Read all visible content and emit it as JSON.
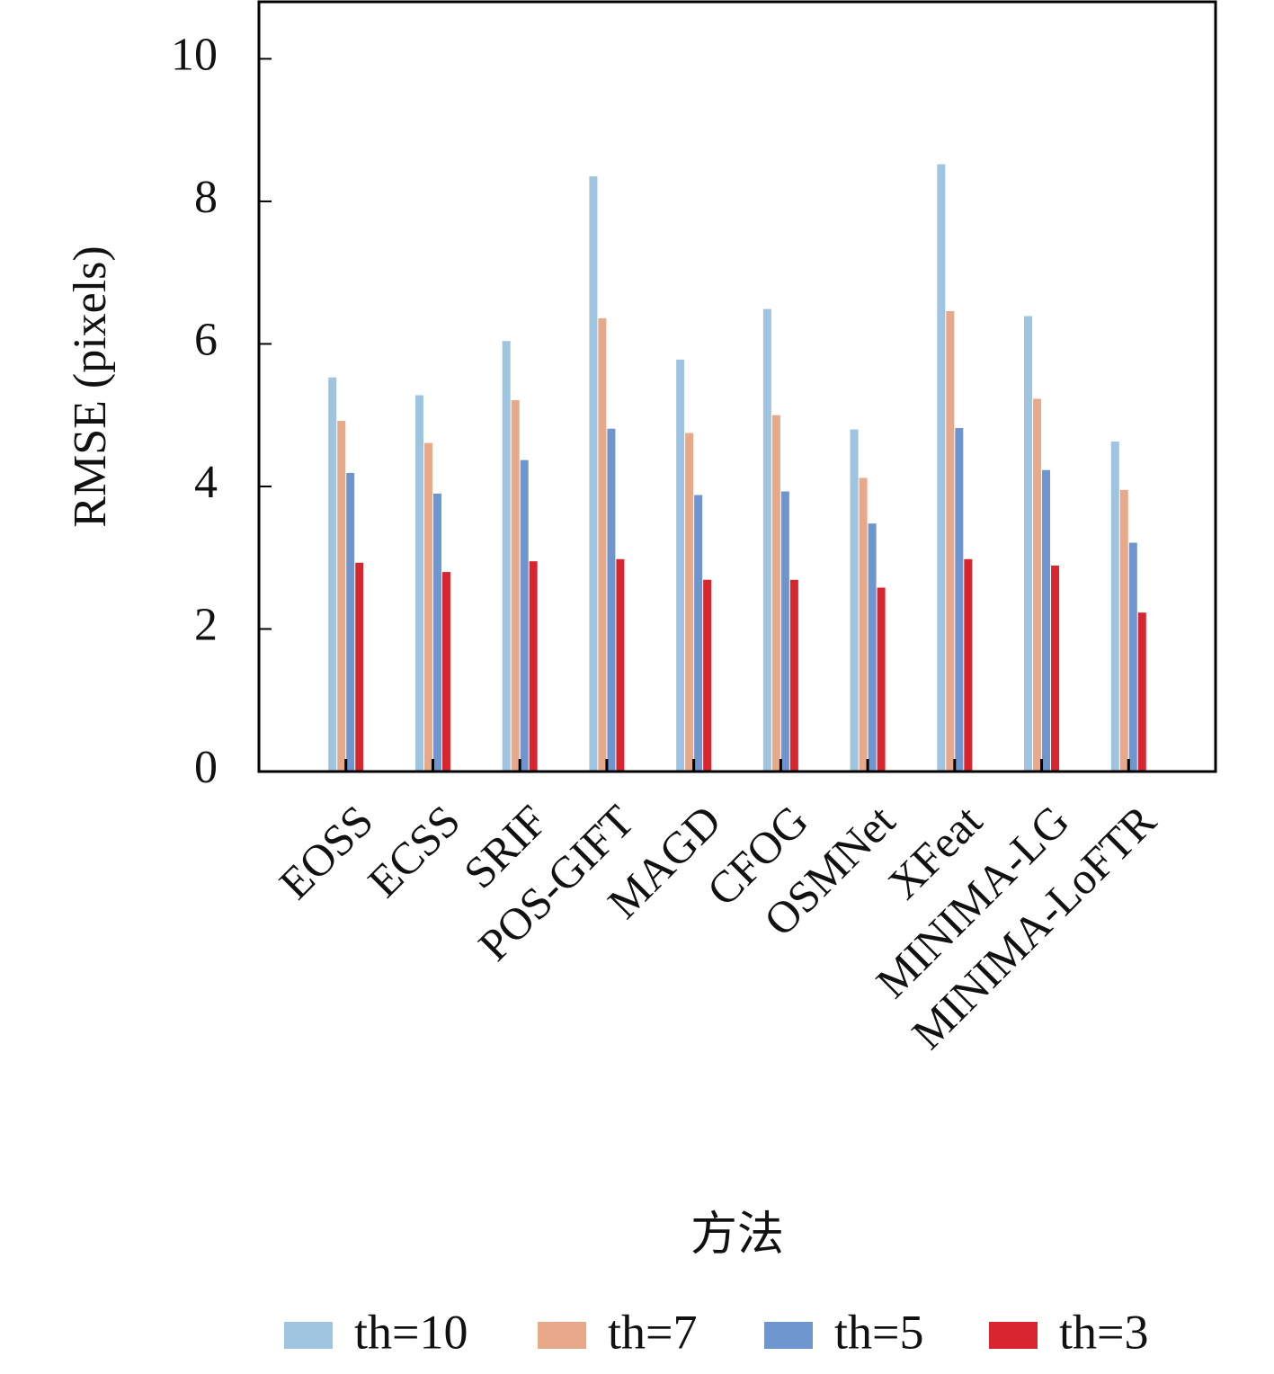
{
  "chart_data": {
    "type": "bar",
    "y_label": "RMSE (pixels)",
    "x_label": "方法",
    "categories": [
      "EOSS",
      "ECSS",
      "SRIF",
      "POS-GIFT",
      "MAGD",
      "CFOG",
      "OSMNet",
      "XFeat",
      "MINIMA-LG",
      "MINIMA-LoFTR"
    ],
    "series": [
      {
        "name": "th=10",
        "color": "#9ec4e0",
        "values": [
          5.53,
          5.28,
          6.04,
          8.35,
          5.78,
          6.49,
          4.8,
          8.52,
          6.39,
          4.63
        ]
      },
      {
        "name": "th=7",
        "color": "#e8a98a",
        "values": [
          4.92,
          4.61,
          5.21,
          6.36,
          4.75,
          5.0,
          4.12,
          6.46,
          5.23,
          3.95
        ]
      },
      {
        "name": "th=5",
        "color": "#6f95cf",
        "values": [
          4.19,
          3.9,
          4.37,
          4.81,
          3.88,
          3.93,
          3.48,
          4.82,
          4.23,
          3.21
        ]
      },
      {
        "name": "th=3",
        "color": "#d7262e",
        "values": [
          2.93,
          2.8,
          2.95,
          2.98,
          2.69,
          2.69,
          2.58,
          2.98,
          2.89,
          2.23
        ]
      }
    ],
    "ylim": [
      0,
      10.8
    ],
    "yticks": [
      0,
      2,
      4,
      6,
      8,
      10
    ],
    "legend": "bottom"
  }
}
